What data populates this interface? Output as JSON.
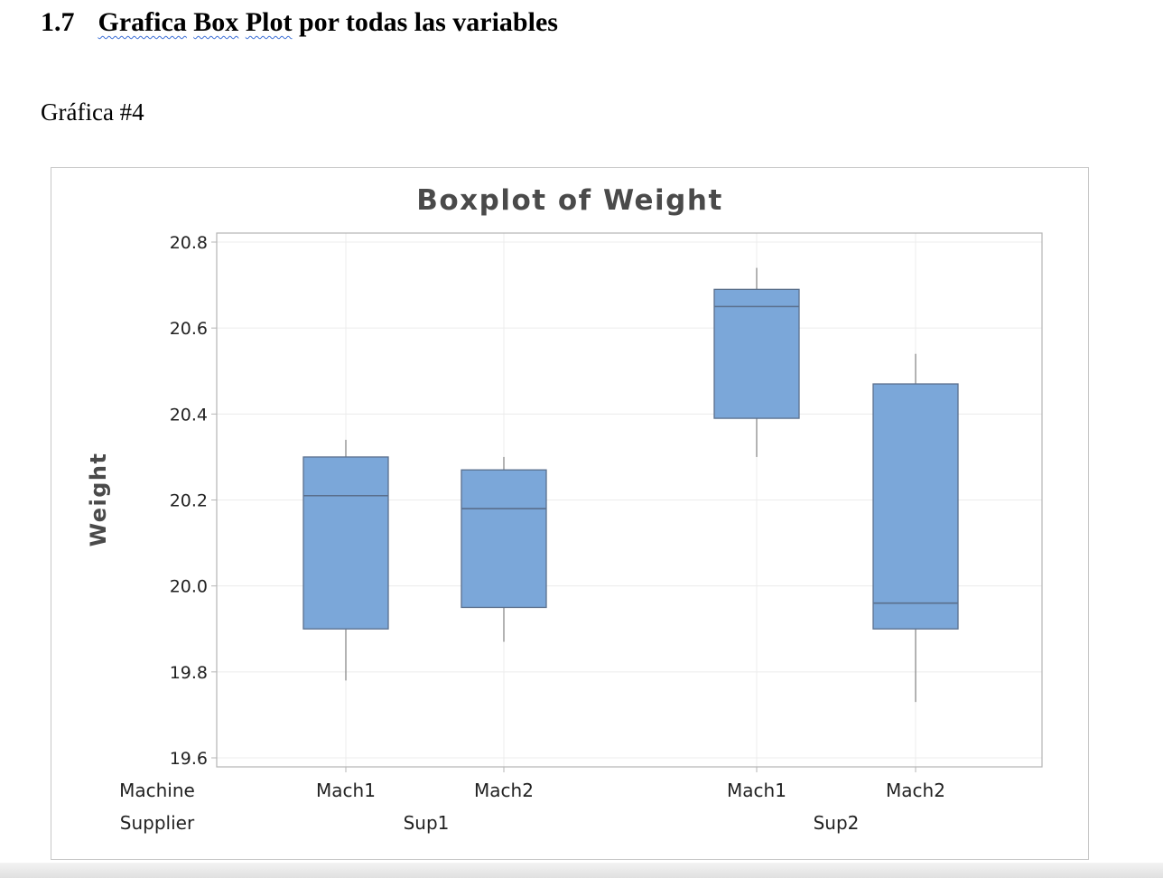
{
  "document": {
    "section_number": "1.7",
    "heading_words": [
      "Grafica",
      "Box",
      "Plot",
      "por todas las variables"
    ],
    "figure_caption": "Gráfica #4"
  },
  "chart_data": {
    "type": "boxplot",
    "title": "Boxplot of Weight",
    "ylabel": "Weight",
    "ylim": [
      19.6,
      20.8
    ],
    "yticks": [
      "19.6",
      "19.8",
      "20.0",
      "20.2",
      "20.4",
      "20.6",
      "20.8"
    ],
    "grid": true,
    "row_labels": [
      "Machine",
      "Supplier"
    ],
    "groups": [
      {
        "supplier": "Sup1",
        "machine": "Mach1",
        "min": 19.78,
        "q1": 19.9,
        "median": 20.21,
        "q3": 20.3,
        "max": 20.34
      },
      {
        "supplier": "Sup1",
        "machine": "Mach2",
        "min": 19.87,
        "q1": 19.95,
        "median": 20.18,
        "q3": 20.27,
        "max": 20.3
      },
      {
        "supplier": "Sup2",
        "machine": "Mach1",
        "min": 20.3,
        "q1": 20.39,
        "median": 20.65,
        "q3": 20.69,
        "max": 20.74
      },
      {
        "supplier": "Sup2",
        "machine": "Mach2",
        "min": 19.73,
        "q1": 19.9,
        "median": 19.96,
        "q3": 20.47,
        "max": 20.54
      }
    ],
    "suppliers": [
      "Sup1",
      "Sup2"
    ],
    "colors": {
      "box_fill": "#7ba7d9",
      "box_stroke": "#5a6f8c",
      "whisker": "#8a8a8a",
      "grid": "#ececec",
      "axis": "#b5b5b5",
      "text": "#4a4a4a",
      "title": "#4a4a4a"
    }
  }
}
